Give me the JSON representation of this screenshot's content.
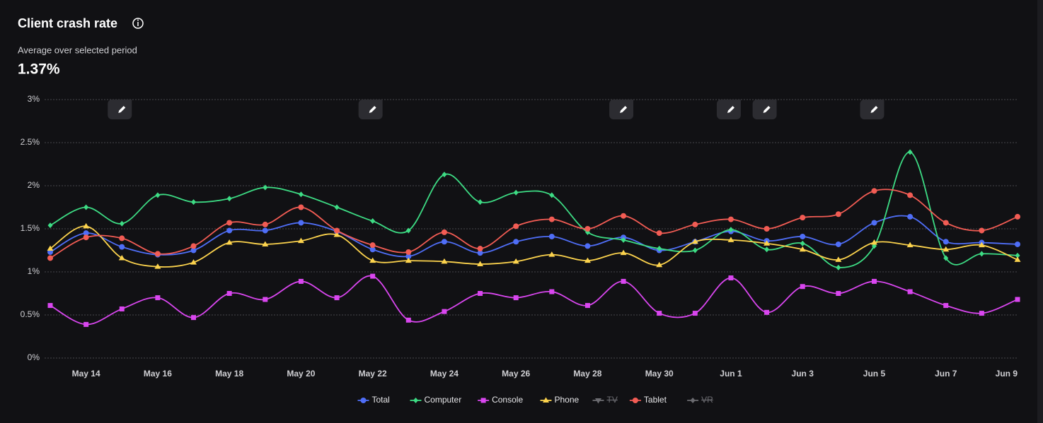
{
  "chart_data": {
    "type": "line",
    "title": "Client crash rate",
    "subtitle": "Average over selected period",
    "summary": "1.37%",
    "categories": [
      null,
      "May 14",
      null,
      "May 16",
      null,
      "May 18",
      null,
      "May 20",
      null,
      "May 22",
      null,
      "May 24",
      null,
      "May 26",
      null,
      "May 28",
      null,
      "May 30",
      null,
      "Jun 1",
      null,
      "Jun 3",
      null,
      "Jun 5",
      null,
      "Jun 7",
      null,
      "Jun 9"
    ],
    "ylim": [
      0,
      3
    ],
    "yticks": [
      {
        "value": 0,
        "label": "0%"
      },
      {
        "value": 0.5,
        "label": "0.5%"
      },
      {
        "value": 1,
        "label": "1%"
      },
      {
        "value": 1.5,
        "label": "1.5%"
      },
      {
        "value": 2,
        "label": "2%"
      },
      {
        "value": 2.5,
        "label": "2.5%"
      },
      {
        "value": 3,
        "label": "3%"
      }
    ],
    "grid": true,
    "annotation_indices": [
      2,
      9,
      16,
      19,
      20,
      23
    ],
    "series": [
      {
        "name": "Total",
        "color": "#4f6ef7",
        "marker": "circle",
        "values": [
          1.23,
          1.45,
          1.29,
          1.2,
          1.25,
          1.48,
          1.48,
          1.57,
          1.47,
          1.26,
          1.18,
          1.35,
          1.22,
          1.35,
          1.41,
          1.3,
          1.4,
          1.25,
          1.35,
          1.47,
          1.36,
          1.41,
          1.32,
          1.57,
          1.64,
          1.35,
          1.34,
          1.32
        ]
      },
      {
        "name": "Computer",
        "color": "#3ddc84",
        "marker": "diamond",
        "values": [
          1.54,
          1.75,
          1.56,
          1.89,
          1.81,
          1.85,
          1.98,
          1.9,
          1.75,
          1.59,
          1.48,
          2.13,
          1.81,
          1.92,
          1.89,
          1.46,
          1.37,
          1.27,
          1.25,
          1.49,
          1.26,
          1.33,
          1.05,
          1.3,
          2.39,
          1.16,
          1.21,
          1.19
        ]
      },
      {
        "name": "Console",
        "color": "#d946ef",
        "marker": "square",
        "values": [
          0.61,
          0.39,
          0.57,
          0.7,
          0.47,
          0.75,
          0.68,
          0.89,
          0.7,
          0.95,
          0.44,
          0.54,
          0.75,
          0.7,
          0.77,
          0.61,
          0.89,
          0.52,
          0.52,
          0.93,
          0.53,
          0.83,
          0.75,
          0.89,
          0.77,
          0.61,
          0.52,
          0.68
        ]
      },
      {
        "name": "Phone",
        "color": "#fcd34d",
        "marker": "triangle",
        "values": [
          1.27,
          1.53,
          1.16,
          1.06,
          1.11,
          1.34,
          1.32,
          1.36,
          1.43,
          1.13,
          1.13,
          1.12,
          1.09,
          1.12,
          1.2,
          1.13,
          1.22,
          1.08,
          1.35,
          1.37,
          1.33,
          1.26,
          1.14,
          1.34,
          1.31,
          1.26,
          1.31,
          1.14
        ]
      },
      {
        "name": "TV",
        "color": "#6b6b70",
        "marker": "triangle-down",
        "hidden": true,
        "values": [
          null,
          null,
          null,
          null,
          null,
          null,
          null,
          null,
          null,
          null,
          null,
          null,
          null,
          null,
          null,
          null,
          null,
          null,
          null,
          null,
          null,
          null,
          null,
          null,
          null,
          null,
          null,
          null
        ]
      },
      {
        "name": "Tablet",
        "color": "#f25c54",
        "marker": "circle",
        "values": [
          1.16,
          1.4,
          1.39,
          1.21,
          1.3,
          1.57,
          1.55,
          1.75,
          1.48,
          1.31,
          1.23,
          1.46,
          1.27,
          1.53,
          1.61,
          1.5,
          1.65,
          1.45,
          1.55,
          1.61,
          1.5,
          1.63,
          1.67,
          1.94,
          1.89,
          1.57,
          1.48,
          1.64
        ]
      },
      {
        "name": "VR",
        "color": "#6b6b70",
        "marker": "diamond",
        "hidden": true,
        "values": [
          null,
          null,
          null,
          null,
          null,
          null,
          null,
          null,
          null,
          null,
          null,
          null,
          null,
          null,
          null,
          null,
          null,
          null,
          null,
          null,
          null,
          null,
          null,
          null,
          null,
          null,
          null,
          null
        ]
      }
    ]
  }
}
